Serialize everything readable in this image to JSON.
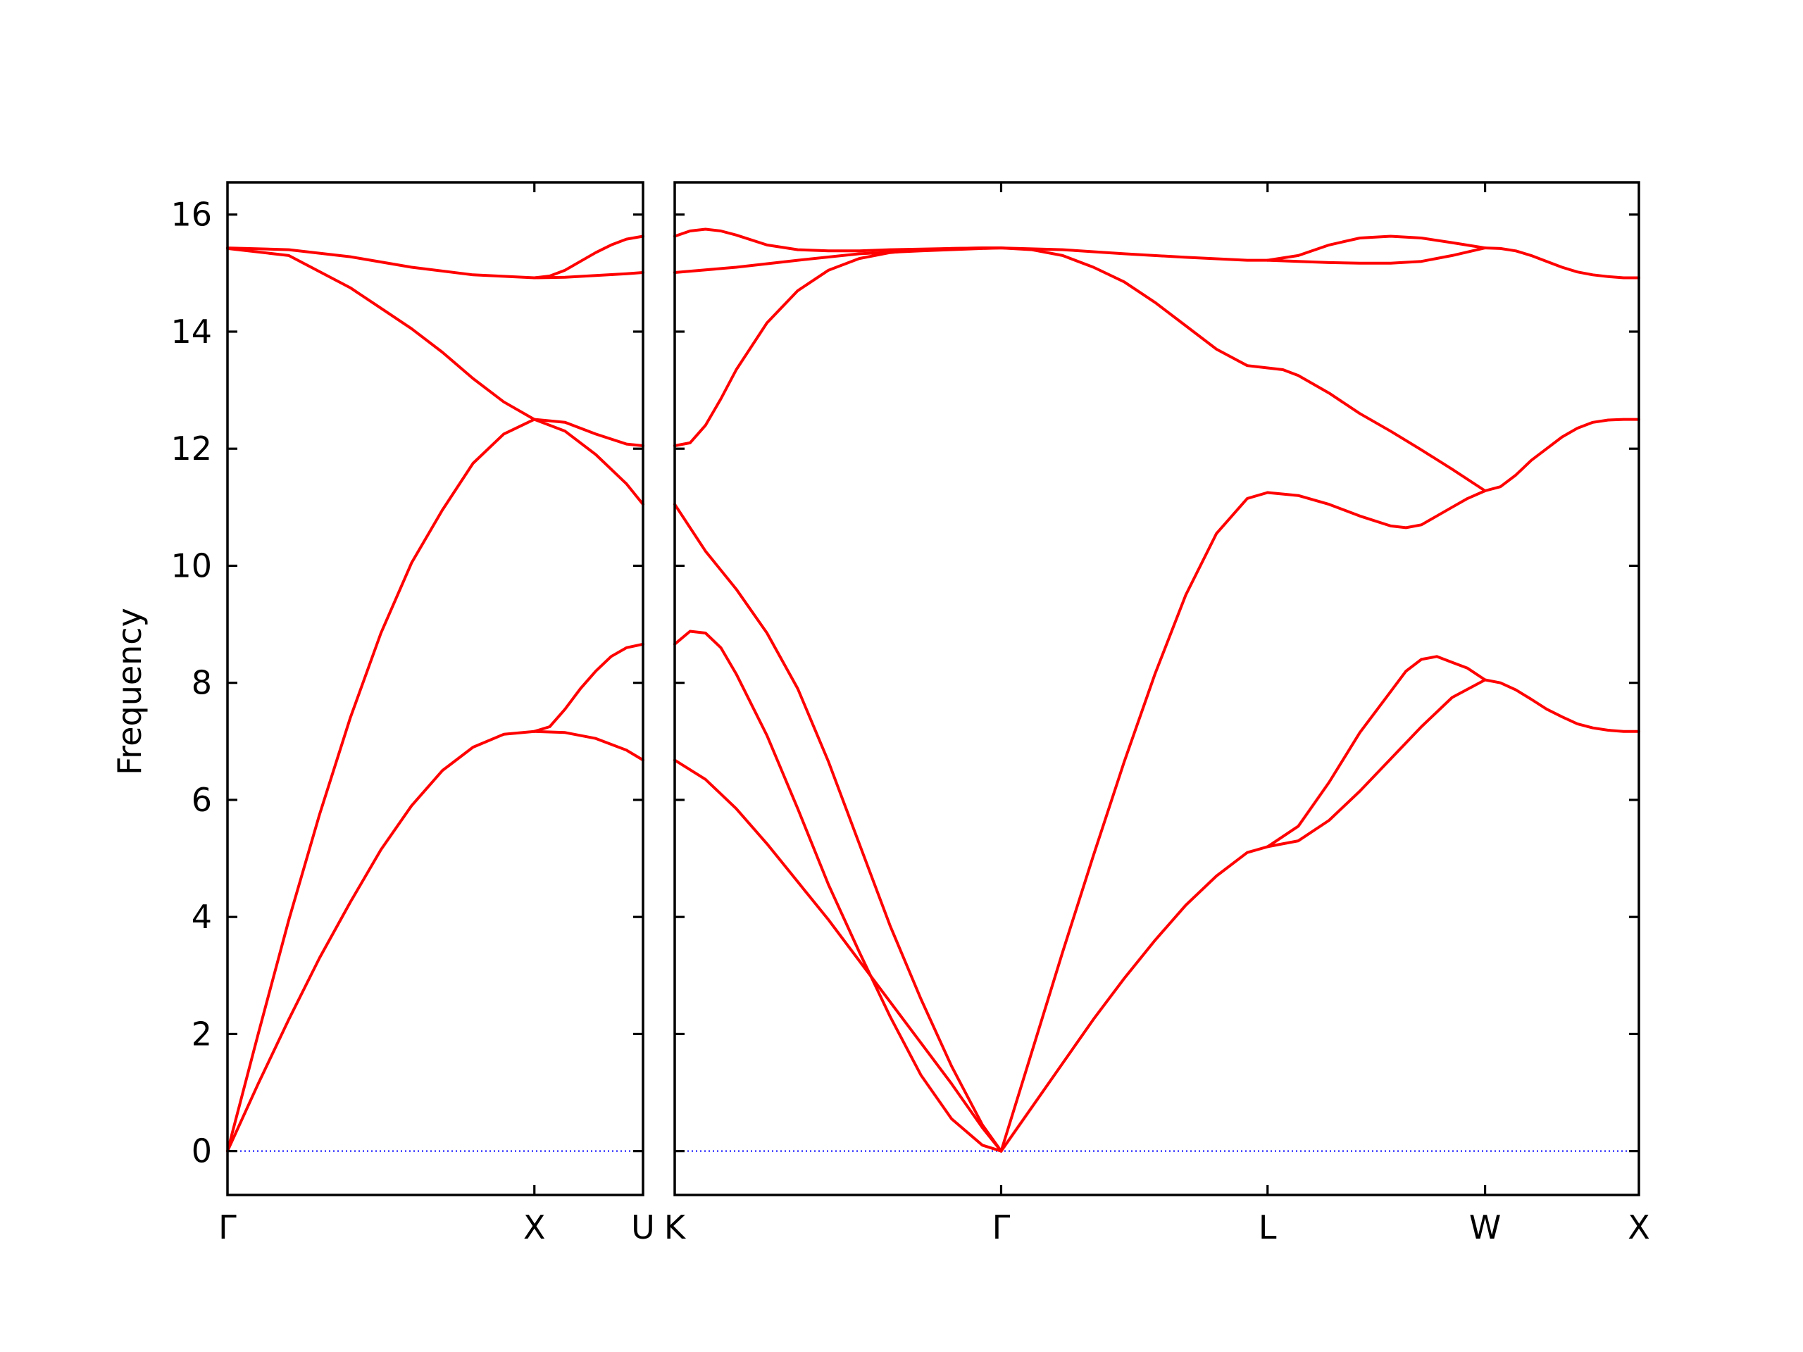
{
  "chart_data": {
    "type": "line",
    "title": "",
    "ylabel": "Frequency",
    "ylim": [
      -0.75,
      16.55
    ],
    "yticks": [
      "0",
      "2",
      "4",
      "6",
      "8",
      "10",
      "12",
      "14",
      "16"
    ],
    "ytick_values": [
      0,
      2,
      4,
      6,
      8,
      10,
      12,
      14,
      16
    ],
    "band_color": "#ff0000",
    "zero_line_color": "#0000ff",
    "zero_line": 0,
    "panels": [
      {
        "segments": [
          {
            "start_label": "Γ",
            "end_label": "X",
            "length": 1.0,
            "bands": [
              {
                "x": [
                  0,
                  0.1,
                  0.2,
                  0.3,
                  0.4,
                  0.5,
                  0.6,
                  0.7,
                  0.8,
                  0.9,
                  1.0
                ],
                "y": [
                  0,
                  1.15,
                  2.25,
                  3.3,
                  4.25,
                  5.15,
                  5.9,
                  6.5,
                  6.9,
                  7.12,
                  7.17
                ]
              },
              {
                "x": [
                  0,
                  0.1,
                  0.2,
                  0.3,
                  0.4,
                  0.5,
                  0.6,
                  0.7,
                  0.8,
                  0.9,
                  1.0
                ],
                "y": [
                  0,
                  2.0,
                  3.95,
                  5.75,
                  7.4,
                  8.85,
                  10.05,
                  10.95,
                  11.75,
                  12.25,
                  12.5
                ]
              },
              {
                "x": [
                  0,
                  0.2,
                  0.4,
                  0.5,
                  0.6,
                  0.7,
                  0.8,
                  0.9,
                  1.0
                ],
                "y": [
                  15.42,
                  15.3,
                  14.75,
                  14.4,
                  14.05,
                  13.65,
                  13.2,
                  12.8,
                  12.5
                ]
              },
              {
                "x": [
                  0,
                  0.2,
                  0.4,
                  0.6,
                  0.8,
                  1.0
                ],
                "y": [
                  15.43,
                  15.4,
                  15.28,
                  15.1,
                  14.97,
                  14.92
                ]
              }
            ]
          },
          {
            "start_label": "X",
            "end_label": "U",
            "length": 0.354,
            "bands": [
              {
                "x": [
                  0,
                  0.1,
                  0.2,
                  0.3,
                  0.354
                ],
                "y": [
                  7.17,
                  7.15,
                  7.05,
                  6.85,
                  6.68
                ]
              },
              {
                "x": [
                  0,
                  0.05,
                  0.1,
                  0.15,
                  0.2,
                  0.25,
                  0.3,
                  0.354
                ],
                "y": [
                  7.17,
                  7.25,
                  7.55,
                  7.9,
                  8.2,
                  8.45,
                  8.6,
                  8.66
                ]
              },
              {
                "x": [
                  0,
                  0.1,
                  0.2,
                  0.3,
                  0.354
                ],
                "y": [
                  12.5,
                  12.3,
                  11.9,
                  11.4,
                  11.05
                ]
              },
              {
                "x": [
                  0,
                  0.1,
                  0.2,
                  0.3,
                  0.354
                ],
                "y": [
                  12.5,
                  12.45,
                  12.25,
                  12.08,
                  12.05
                ]
              },
              {
                "x": [
                  0,
                  0.1,
                  0.2,
                  0.3,
                  0.354
                ],
                "y": [
                  14.92,
                  14.93,
                  14.96,
                  14.99,
                  15.01
                ]
              },
              {
                "x": [
                  0,
                  0.05,
                  0.1,
                  0.15,
                  0.2,
                  0.25,
                  0.3,
                  0.354
                ],
                "y": [
                  14.92,
                  14.95,
                  15.05,
                  15.2,
                  15.35,
                  15.48,
                  15.58,
                  15.63
                ]
              }
            ]
          }
        ]
      },
      {
        "segments": [
          {
            "start_label": "K",
            "end_label": "Γ",
            "length": 1.061,
            "bands": [
              {
                "x": [
                  0,
                  0.1,
                  0.2,
                  0.3,
                  0.4,
                  0.5,
                  0.6,
                  0.7,
                  0.8,
                  0.9,
                  1.0,
                  1.061
                ],
                "y": [
                  6.68,
                  6.35,
                  5.85,
                  5.25,
                  4.6,
                  3.95,
                  3.25,
                  2.55,
                  1.85,
                  1.15,
                  0.4,
                  0
                ]
              },
              {
                "x": [
                  0,
                  0.05,
                  0.1,
                  0.15,
                  0.2,
                  0.3,
                  0.4,
                  0.5,
                  0.6,
                  0.7,
                  0.8,
                  0.9,
                  1.0,
                  1.061
                ],
                "y": [
                  8.66,
                  8.88,
                  8.85,
                  8.6,
                  8.15,
                  7.1,
                  5.85,
                  4.55,
                  3.4,
                  2.3,
                  1.3,
                  0.55,
                  0.1,
                  0
                ]
              },
              {
                "x": [
                  0,
                  0.1,
                  0.2,
                  0.3,
                  0.4,
                  0.5,
                  0.6,
                  0.7,
                  0.8,
                  0.9,
                  1.0,
                  1.061
                ],
                "y": [
                  11.05,
                  10.25,
                  9.6,
                  8.85,
                  7.9,
                  6.65,
                  5.25,
                  3.85,
                  2.6,
                  1.45,
                  0.45,
                  0
                ]
              },
              {
                "x": [
                  0,
                  0.05,
                  0.1,
                  0.15,
                  0.2,
                  0.3,
                  0.4,
                  0.5,
                  0.6,
                  0.7,
                  0.8,
                  0.9,
                  1.0,
                  1.061
                ],
                "y": [
                  12.05,
                  12.1,
                  12.4,
                  12.85,
                  13.35,
                  14.15,
                  14.7,
                  15.05,
                  15.25,
                  15.35,
                  15.4,
                  15.42,
                  15.43,
                  15.43
                ]
              },
              {
                "x": [
                  0,
                  0.2,
                  0.4,
                  0.6,
                  0.8,
                  1.0,
                  1.061
                ],
                "y": [
                  15.01,
                  15.1,
                  15.22,
                  15.33,
                  15.38,
                  15.42,
                  15.43
                ]
              },
              {
                "x": [
                  0,
                  0.05,
                  0.1,
                  0.15,
                  0.2,
                  0.3,
                  0.4,
                  0.5,
                  0.6,
                  0.7,
                  0.8,
                  0.9,
                  1.0,
                  1.061
                ],
                "y": [
                  15.63,
                  15.72,
                  15.75,
                  15.72,
                  15.65,
                  15.48,
                  15.4,
                  15.38,
                  15.38,
                  15.4,
                  15.41,
                  15.42,
                  15.43,
                  15.43
                ]
              }
            ]
          },
          {
            "start_label": "Γ",
            "end_label": "L",
            "length": 0.866,
            "bands": [
              {
                "x": [
                  0,
                  0.1,
                  0.2,
                  0.3,
                  0.4,
                  0.5,
                  0.6,
                  0.7,
                  0.8,
                  0.866
                ],
                "y": [
                  0,
                  0.75,
                  1.5,
                  2.25,
                  2.95,
                  3.6,
                  4.2,
                  4.7,
                  5.1,
                  5.2
                ]
              },
              {
                "x": [
                  0,
                  0.1,
                  0.2,
                  0.3,
                  0.4,
                  0.5,
                  0.6,
                  0.7,
                  0.8,
                  0.866
                ],
                "y": [
                  0,
                  1.7,
                  3.4,
                  5.05,
                  6.65,
                  8.15,
                  9.5,
                  10.55,
                  11.15,
                  11.25
                ]
              },
              {
                "x": [
                  0,
                  0.1,
                  0.2,
                  0.3,
                  0.4,
                  0.5,
                  0.6,
                  0.7,
                  0.8,
                  0.866
                ],
                "y": [
                  15.43,
                  15.4,
                  15.3,
                  15.1,
                  14.85,
                  14.5,
                  14.1,
                  13.7,
                  13.42,
                  13.38
                ]
              },
              {
                "x": [
                  0,
                  0.2,
                  0.4,
                  0.6,
                  0.8,
                  0.866
                ],
                "y": [
                  15.43,
                  15.4,
                  15.33,
                  15.27,
                  15.22,
                  15.22
                ]
              }
            ]
          },
          {
            "start_label": "L",
            "end_label": "W",
            "length": 0.707,
            "bands": [
              {
                "x": [
                  0,
                  0.1,
                  0.2,
                  0.3,
                  0.4,
                  0.5,
                  0.6,
                  0.707
                ],
                "y": [
                  5.2,
                  5.3,
                  5.65,
                  6.15,
                  6.7,
                  7.25,
                  7.75,
                  8.05
                ]
              },
              {
                "x": [
                  0,
                  0.1,
                  0.2,
                  0.3,
                  0.4,
                  0.45,
                  0.5,
                  0.55,
                  0.6,
                  0.65,
                  0.707
                ],
                "y": [
                  5.2,
                  5.55,
                  6.3,
                  7.15,
                  7.85,
                  8.2,
                  8.4,
                  8.45,
                  8.35,
                  8.25,
                  8.05
                ]
              },
              {
                "x": [
                  0,
                  0.1,
                  0.2,
                  0.3,
                  0.4,
                  0.45,
                  0.5,
                  0.55,
                  0.6,
                  0.65,
                  0.707
                ],
                "y": [
                  11.25,
                  11.2,
                  11.05,
                  10.85,
                  10.68,
                  10.65,
                  10.7,
                  10.85,
                  11.0,
                  11.15,
                  11.28
                ]
              },
              {
                "x": [
                  0,
                  0.05,
                  0.1,
                  0.2,
                  0.3,
                  0.4,
                  0.5,
                  0.6,
                  0.707
                ],
                "y": [
                  13.38,
                  13.35,
                  13.25,
                  12.95,
                  12.6,
                  12.3,
                  11.98,
                  11.65,
                  11.28
                ]
              },
              {
                "x": [
                  0,
                  0.1,
                  0.2,
                  0.3,
                  0.4,
                  0.5,
                  0.6,
                  0.707
                ],
                "y": [
                  15.22,
                  15.2,
                  15.18,
                  15.17,
                  15.17,
                  15.2,
                  15.3,
                  15.43
                ]
              },
              {
                "x": [
                  0,
                  0.1,
                  0.2,
                  0.3,
                  0.4,
                  0.5,
                  0.6,
                  0.707
                ],
                "y": [
                  15.22,
                  15.3,
                  15.48,
                  15.6,
                  15.63,
                  15.6,
                  15.52,
                  15.43
                ]
              }
            ]
          },
          {
            "start_label": "W",
            "end_label": "X",
            "length": 0.5,
            "bands": [
              {
                "x": [
                  0,
                  0.05,
                  0.1,
                  0.15,
                  0.2,
                  0.25,
                  0.3,
                  0.35,
                  0.4,
                  0.45,
                  0.5
                ],
                "y": [
                  8.05,
                  8.0,
                  7.88,
                  7.72,
                  7.55,
                  7.42,
                  7.3,
                  7.23,
                  7.19,
                  7.17,
                  7.17
                ]
              },
              {
                "x": [
                  0,
                  0.05,
                  0.1,
                  0.15,
                  0.2,
                  0.25,
                  0.3,
                  0.35,
                  0.4,
                  0.45,
                  0.5
                ],
                "y": [
                  11.28,
                  11.35,
                  11.55,
                  11.8,
                  12.0,
                  12.2,
                  12.35,
                  12.45,
                  12.49,
                  12.5,
                  12.5
                ]
              },
              {
                "x": [
                  0,
                  0.05,
                  0.1,
                  0.15,
                  0.2,
                  0.25,
                  0.3,
                  0.35,
                  0.4,
                  0.45,
                  0.5
                ],
                "y": [
                  15.43,
                  15.42,
                  15.38,
                  15.3,
                  15.2,
                  15.1,
                  15.02,
                  14.97,
                  14.94,
                  14.92,
                  14.92
                ]
              }
            ]
          }
        ]
      }
    ]
  }
}
